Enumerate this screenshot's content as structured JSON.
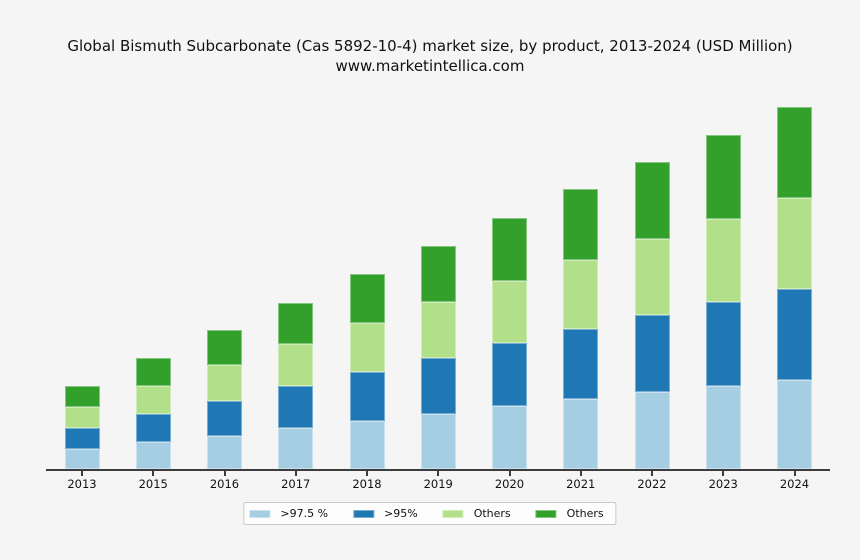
{
  "title": {
    "line1": "Global Bismuth Subcarbonate (Cas 5892-10-4) market size, by product, 2013-2024 (USD Million)",
    "line2": "www.marketintellica.com"
  },
  "colors": {
    "background": "#f5f5f6",
    "axis": "#3c3c3c",
    "text": "#111111",
    "legend_bg": "#fdfdfd",
    "legend_border": "#c9c9c9"
  },
  "chart_data": {
    "type": "bar",
    "stacked": true,
    "title": "Global Bismuth Subcarbonate (Cas 5892-10-4) market size, by product, 2013-2024 (USD Million)",
    "subtitle": "www.marketintellica.com",
    "unit": "USD Million",
    "xlabel": "",
    "ylabel": "",
    "grid": false,
    "legend_position": "bottom",
    "categories": [
      "2013",
      "2015",
      "2016",
      "2017",
      "2018",
      "2019",
      "2020",
      "2021",
      "2022",
      "2023",
      "2024"
    ],
    "series": [
      {
        "name": ">97.5 %",
        "color": "#a6cee3",
        "values": [
          20,
          27,
          33,
          41,
          48,
          55,
          63,
          70,
          77,
          83,
          89
        ]
      },
      {
        "name": ">95%",
        "color": "#1f78b4",
        "values": [
          21,
          28,
          35,
          42,
          49,
          56,
          63,
          70,
          77,
          84,
          91
        ]
      },
      {
        "name": "Others",
        "color": "#b2df8a",
        "values": [
          21,
          28,
          36,
          42,
          49,
          56,
          62,
          69,
          76,
          83,
          91
        ]
      },
      {
        "name": "Others",
        "color": "#33a02c",
        "values": [
          21,
          28,
          35,
          41,
          49,
          56,
          63,
          71,
          77,
          84,
          91
        ]
      }
    ],
    "totals": [
      83,
      111,
      139,
      166,
      195,
      223,
      251,
      280,
      307,
      334,
      362
    ],
    "ylim": [
      0,
      380
    ]
  },
  "legend": {
    "items": [
      {
        "label": ">97.5 %",
        "color": "#a6cee3"
      },
      {
        "label": ">95%",
        "color": "#1f78b4"
      },
      {
        "label": "Others",
        "color": "#b2df8a"
      },
      {
        "label": "Others",
        "color": "#33a02c"
      }
    ]
  }
}
